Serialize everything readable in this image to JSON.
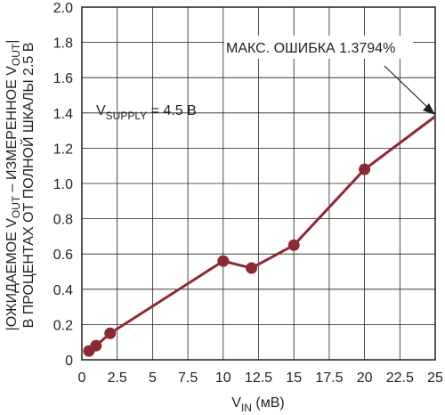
{
  "chart_data": {
    "type": "line",
    "title": "",
    "xlabel": {
      "base": "V",
      "sub": "IN",
      "suffix": " (мВ)"
    },
    "ylabel": {
      "line1": {
        "p1": "|ОЖИДАЕМОЕ V",
        "s1": "OUT",
        "p2": " – ИЗМЕРЕННОЕ V",
        "s2": "OUT",
        "p3": "|"
      },
      "line2": "В ПРОЦЕНТАХ ОТ ПОЛНОЙ ШКАЛЫ 2.5 В"
    },
    "xlim": [
      0,
      25
    ],
    "ylim": [
      0,
      2.0
    ],
    "grid": true,
    "x_ticks": [
      "0",
      "2.5",
      "5",
      "7.5",
      "10",
      "12.5",
      "15",
      "17.5",
      "20",
      "22.5",
      "25"
    ],
    "y_ticks": [
      "0",
      "0.2",
      "0.4",
      "0.6",
      "0.8",
      "1.0",
      "1.2",
      "1.4",
      "1.6",
      "1.8",
      "2.0"
    ],
    "series": [
      {
        "color": "#8b2a35",
        "x": [
          0.5,
          1.0,
          2.0,
          10.0,
          12.0,
          15.0,
          20.0,
          25.0
        ],
        "y": [
          0.05,
          0.08,
          0.15,
          0.56,
          0.52,
          0.65,
          1.08,
          1.38
        ],
        "markers": [
          true,
          true,
          true,
          true,
          true,
          true,
          true,
          false
        ]
      }
    ],
    "annotations": {
      "supply": {
        "base": "V",
        "sub": "SUPPLY",
        "rest": " = 4.5 В"
      },
      "max_error": "МАКС. ОШИБКА 1.3794%"
    }
  }
}
